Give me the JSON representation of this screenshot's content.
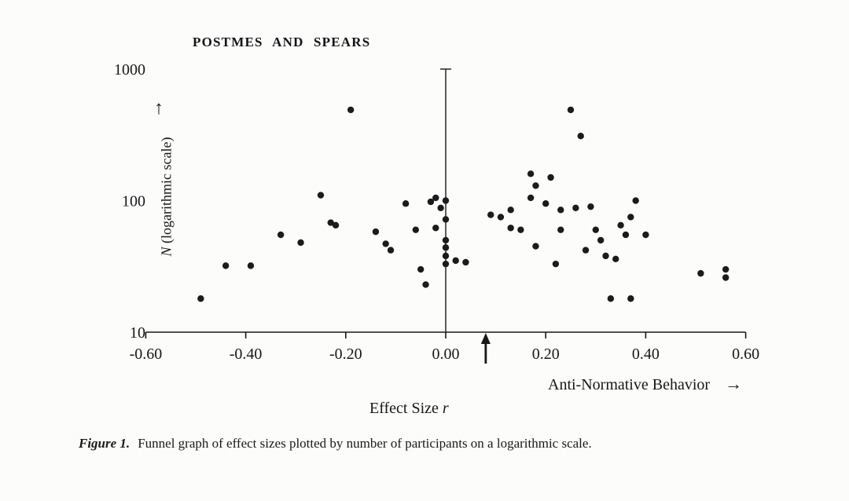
{
  "page": {
    "running_head": "POSTMES AND SPEARS"
  },
  "labels": {
    "y_axis_var": "N",
    "y_axis_rest": " (logarithmic scale)",
    "x_axis_name": "Anti-Normative Behavior",
    "x_axis_sub_prefix": "Effect Size ",
    "x_axis_sub_var": "r",
    "up_arrow": "↑",
    "right_arrow": "→"
  },
  "caption": {
    "label": "Figure 1.",
    "text": "Funnel graph of effect sizes plotted by number of participants on a logarithmic scale."
  },
  "colors": {
    "ink": "#181818",
    "paper": "#fcfcfb"
  },
  "chart_data": {
    "type": "scatter",
    "title": "POSTMES AND SPEARS",
    "x_axis": {
      "label": "Effect Size r",
      "secondary_label": "Anti-Normative Behavior",
      "range": [
        -0.6,
        0.6
      ],
      "ticks": [
        -0.6,
        -0.4,
        -0.2,
        0.0,
        0.2,
        0.4,
        0.6
      ],
      "tick_labels": [
        "-0.60",
        "-0.40",
        "-0.20",
        "0.00",
        "0.20",
        "0.40",
        "0.60"
      ]
    },
    "y_axis": {
      "label": "N (logarithmic scale)",
      "scale": "log",
      "range": [
        10,
        1000
      ],
      "ticks": [
        10,
        100,
        1000
      ],
      "tick_labels": [
        "10",
        "100",
        "1000"
      ]
    },
    "annotations": {
      "mean_effect_arrow_x": 0.08,
      "zero_line_x": 0.0
    },
    "points": [
      [
        -0.49,
        18
      ],
      [
        -0.44,
        32
      ],
      [
        -0.39,
        32
      ],
      [
        -0.33,
        55
      ],
      [
        -0.29,
        48
      ],
      [
        -0.25,
        110
      ],
      [
        -0.23,
        68
      ],
      [
        -0.22,
        65
      ],
      [
        -0.19,
        490
      ],
      [
        -0.14,
        58
      ],
      [
        -0.12,
        47
      ],
      [
        -0.11,
        42
      ],
      [
        -0.08,
        95
      ],
      [
        -0.06,
        60
      ],
      [
        -0.05,
        30
      ],
      [
        -0.04,
        23
      ],
      [
        -0.03,
        98
      ],
      [
        -0.02,
        105
      ],
      [
        -0.02,
        62
      ],
      [
        -0.01,
        88
      ],
      [
        0.0,
        100
      ],
      [
        0.0,
        72
      ],
      [
        0.0,
        50
      ],
      [
        0.0,
        44
      ],
      [
        0.0,
        38
      ],
      [
        0.0,
        33
      ],
      [
        0.02,
        35
      ],
      [
        0.04,
        34
      ],
      [
        0.09,
        78
      ],
      [
        0.11,
        75
      ],
      [
        0.13,
        85
      ],
      [
        0.13,
        62
      ],
      [
        0.15,
        60
      ],
      [
        0.17,
        160
      ],
      [
        0.17,
        105
      ],
      [
        0.18,
        130
      ],
      [
        0.18,
        45
      ],
      [
        0.2,
        95
      ],
      [
        0.21,
        150
      ],
      [
        0.22,
        33
      ],
      [
        0.23,
        85
      ],
      [
        0.23,
        60
      ],
      [
        0.25,
        490
      ],
      [
        0.26,
        88
      ],
      [
        0.27,
        310
      ],
      [
        0.28,
        42
      ],
      [
        0.29,
        90
      ],
      [
        0.3,
        60
      ],
      [
        0.31,
        50
      ],
      [
        0.32,
        38
      ],
      [
        0.33,
        18
      ],
      [
        0.34,
        36
      ],
      [
        0.35,
        65
      ],
      [
        0.36,
        55
      ],
      [
        0.37,
        18
      ],
      [
        0.37,
        75
      ],
      [
        0.38,
        100
      ],
      [
        0.4,
        55
      ],
      [
        0.51,
        28
      ],
      [
        0.56,
        30
      ],
      [
        0.56,
        26
      ]
    ]
  }
}
